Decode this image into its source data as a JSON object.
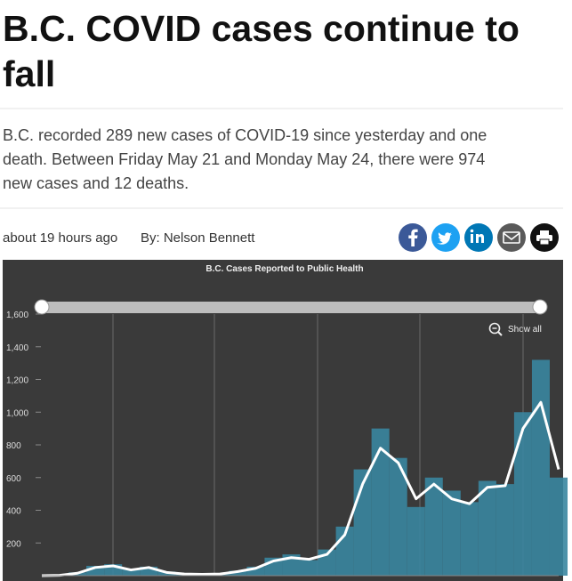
{
  "article": {
    "headline": [
      "B.C. COVID cases continue to",
      "fall"
    ],
    "summary": [
      "B.C. recorded 289 new cases of COVID-19 since yesterday and one",
      "death. Between Friday May 21 and Monday May 24, there were 974",
      "new cases and 12 deaths."
    ],
    "time": "about 19 hours ago",
    "author": "By: Nelson Bennett"
  },
  "chart": {
    "type": "bar",
    "title": "B.C. Cases Reported to Public Health",
    "button": "Show all",
    "ylim": [
      0,
      1600
    ],
    "yticks": [
      {
        "value": 200,
        "label": "200"
      },
      {
        "value": 400,
        "label": "400"
      },
      {
        "value": 600,
        "label": "600"
      },
      {
        "value": 800,
        "label": "800"
      },
      {
        "value": 1000,
        "label": "1,000"
      },
      {
        "value": 1200,
        "label": "1,200"
      },
      {
        "value": 1400,
        "label": "1,400"
      },
      {
        "value": 1600,
        "label": "1,600"
      }
    ],
    "series": [
      {
        "type": "bar",
        "color": "#3a86a0",
        "values": [
          0,
          5,
          20,
          60,
          70,
          40,
          55,
          25,
          12,
          10,
          15,
          30,
          55,
          110,
          130,
          95,
          160,
          300,
          650,
          900,
          720,
          420,
          600,
          520,
          450,
          580,
          560,
          1000,
          1320,
          600
        ]
      },
      {
        "type": "line",
        "color": "#ffffff",
        "values": [
          0,
          2,
          15,
          50,
          60,
          35,
          50,
          20,
          10,
          8,
          10,
          25,
          45,
          90,
          110,
          100,
          130,
          250,
          560,
          780,
          690,
          470,
          560,
          470,
          440,
          540,
          550,
          900,
          1060,
          650
        ]
      }
    ]
  }
}
